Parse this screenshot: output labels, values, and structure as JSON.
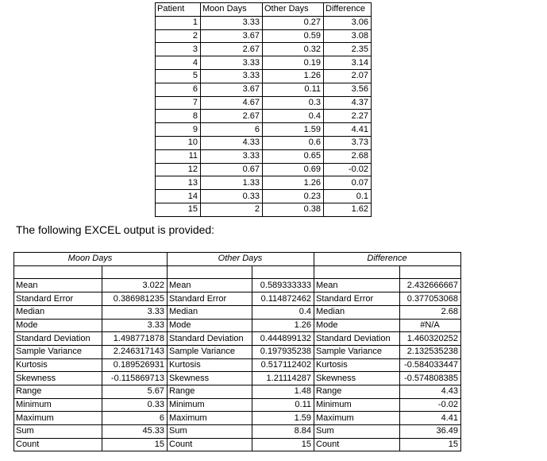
{
  "page": {
    "paragraph": "The following EXCEL output is provided:"
  },
  "colors": {
    "background": "#ffffff",
    "text": "#000000",
    "border": "#000000"
  },
  "patient_table": {
    "headers": [
      "Patient",
      "Moon Days",
      "Other Days",
      "Difference"
    ],
    "rows": [
      [
        "1",
        "3.33",
        "0.27",
        "3.06"
      ],
      [
        "2",
        "3.67",
        "0.59",
        "3.08"
      ],
      [
        "3",
        "2.67",
        "0.32",
        "2.35"
      ],
      [
        "4",
        "3.33",
        "0.19",
        "3.14"
      ],
      [
        "5",
        "3.33",
        "1.26",
        "2.07"
      ],
      [
        "6",
        "3.67",
        "0.11",
        "3.56"
      ],
      [
        "7",
        "4.67",
        "0.3",
        "4.37"
      ],
      [
        "8",
        "2.67",
        "0.4",
        "2.27"
      ],
      [
        "9",
        "6",
        "1.59",
        "4.41"
      ],
      [
        "10",
        "4.33",
        "0.6",
        "3.73"
      ],
      [
        "11",
        "3.33",
        "0.65",
        "2.68"
      ],
      [
        "12",
        "0.67",
        "0.69",
        "-0.02"
      ],
      [
        "13",
        "1.33",
        "1.26",
        "0.07"
      ],
      [
        "14",
        "0.33",
        "0.23",
        "0.1"
      ],
      [
        "15",
        "2",
        "0.38",
        "1.62"
      ]
    ]
  },
  "stats_table": {
    "row_labels": [
      "Mean",
      "Standard Error",
      "Median",
      "Mode",
      "Standard Deviation",
      "Sample Variance",
      "Kurtosis",
      "Skewness",
      "Range",
      "Minimum",
      "Maximum",
      "Sum",
      "Count"
    ],
    "sections": [
      {
        "title": "Moon Days",
        "values": [
          "3.022",
          "0.386981235",
          "3.33",
          "3.33",
          "1.498771878",
          "2.246317143",
          "0.189526931",
          "-0.115869713",
          "5.67",
          "0.33",
          "6",
          "45.33",
          "15"
        ]
      },
      {
        "title": "Other Days",
        "values": [
          "0.589333333",
          "0.114872462",
          "0.4",
          "1.26",
          "0.444899132",
          "0.197935238",
          "0.517112402",
          "1.21114287",
          "1.48",
          "0.11",
          "1.59",
          "8.84",
          "15"
        ]
      },
      {
        "title": "Difference",
        "values": [
          "2.432666667",
          "0.377053068",
          "2.68",
          "#N/A",
          "1.460320252",
          "2.132535238",
          "-0.584033447",
          "-0.574808385",
          "4.43",
          "-0.02",
          "4.41",
          "36.49",
          "15"
        ]
      }
    ]
  }
}
